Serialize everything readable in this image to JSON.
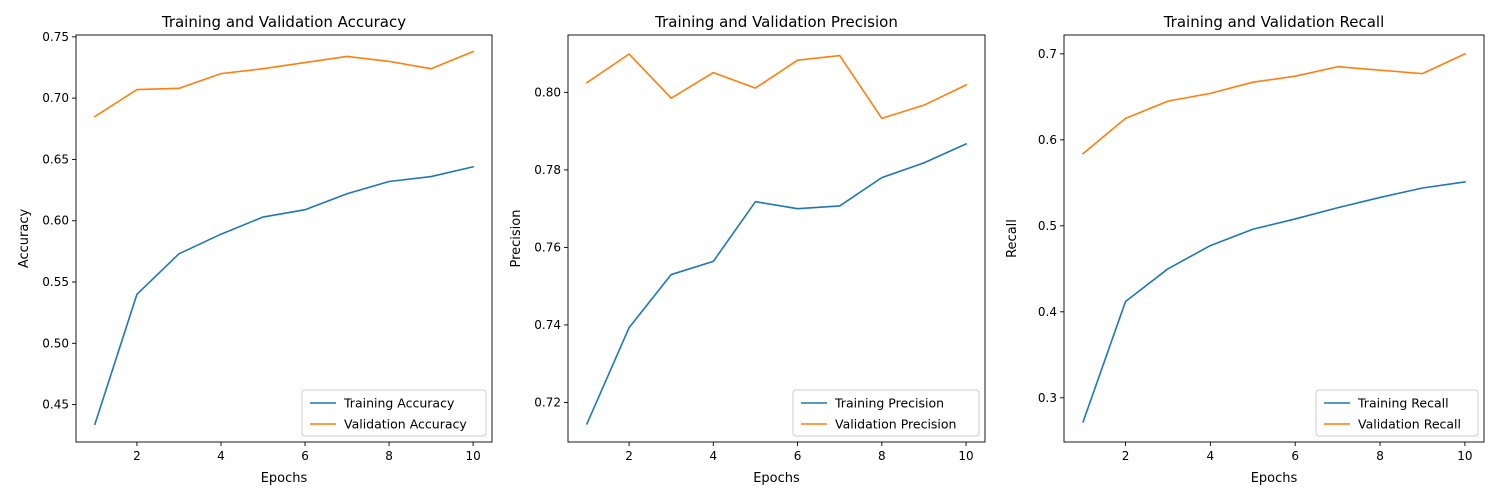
{
  "figure": {
    "background": "#ffffff"
  },
  "chart_data": [
    {
      "type": "line",
      "title": "Training and Validation Accuracy",
      "xlabel": "Epochs",
      "ylabel": "Accuracy",
      "x": [
        1,
        2,
        3,
        4,
        5,
        6,
        7,
        8,
        9,
        10
      ],
      "xlim": [
        0.55,
        10.45
      ],
      "ylim": [
        0.4195,
        0.7515
      ],
      "xticks": [
        2,
        4,
        6,
        8,
        10
      ],
      "yticks": [
        0.45,
        0.5,
        0.55,
        0.6,
        0.65,
        0.7,
        0.75
      ],
      "ytick_labels": [
        "0.45",
        "0.50",
        "0.55",
        "0.60",
        "0.65",
        "0.70",
        "0.75"
      ],
      "grid": false,
      "legend_position": "lower right",
      "series": [
        {
          "name": "Training Accuracy",
          "color": "#1f77b4",
          "values": [
            0.434,
            0.54,
            0.573,
            0.589,
            0.603,
            0.609,
            0.622,
            0.632,
            0.636,
            0.644
          ]
        },
        {
          "name": "Validation Accuracy",
          "color": "#ff7f0e",
          "values": [
            0.685,
            0.707,
            0.708,
            0.72,
            0.724,
            0.729,
            0.734,
            0.73,
            0.724,
            0.738
          ]
        }
      ]
    },
    {
      "type": "line",
      "title": "Training and Validation Precision",
      "xlabel": "Epochs",
      "ylabel": "Precision",
      "x": [
        1,
        2,
        3,
        4,
        5,
        6,
        7,
        8,
        9,
        10
      ],
      "xlim": [
        0.55,
        10.45
      ],
      "ylim": [
        0.7098,
        0.8148
      ],
      "xticks": [
        2,
        4,
        6,
        8,
        10
      ],
      "yticks": [
        0.72,
        0.74,
        0.76,
        0.78,
        0.8
      ],
      "ytick_labels": [
        "0.72",
        "0.74",
        "0.76",
        "0.78",
        "0.80"
      ],
      "grid": false,
      "legend_position": "lower right",
      "series": [
        {
          "name": "Training Precision",
          "color": "#1f77b4",
          "values": [
            0.7145,
            0.7393,
            0.753,
            0.7564,
            0.7718,
            0.77,
            0.7707,
            0.778,
            0.7818,
            0.7867
          ]
        },
        {
          "name": "Validation Precision",
          "color": "#ff7f0e",
          "values": [
            0.8025,
            0.8099,
            0.7985,
            0.8051,
            0.8011,
            0.8083,
            0.8095,
            0.7933,
            0.7967,
            0.8019
          ]
        }
      ]
    },
    {
      "type": "line",
      "title": "Training and Validation Recall",
      "xlabel": "Epochs",
      "ylabel": "Recall",
      "x": [
        1,
        2,
        3,
        4,
        5,
        6,
        7,
        8,
        9,
        10
      ],
      "xlim": [
        0.55,
        10.45
      ],
      "ylim": [
        0.2486,
        0.7219
      ],
      "xticks": [
        2,
        4,
        6,
        8,
        10
      ],
      "yticks": [
        0.3,
        0.4,
        0.5,
        0.6,
        0.7
      ],
      "ytick_labels": [
        "0.3",
        "0.4",
        "0.5",
        "0.6",
        "0.7"
      ],
      "grid": false,
      "legend_position": "lower right",
      "series": [
        {
          "name": "Training Recall",
          "color": "#1f77b4",
          "values": [
            0.272,
            0.412,
            0.45,
            0.477,
            0.496,
            0.508,
            0.521,
            0.533,
            0.544,
            0.551
          ]
        },
        {
          "name": "Validation Recall",
          "color": "#ff7f0e",
          "values": [
            0.584,
            0.625,
            0.645,
            0.654,
            0.667,
            0.674,
            0.685,
            0.681,
            0.677,
            0.7
          ]
        }
      ]
    }
  ]
}
